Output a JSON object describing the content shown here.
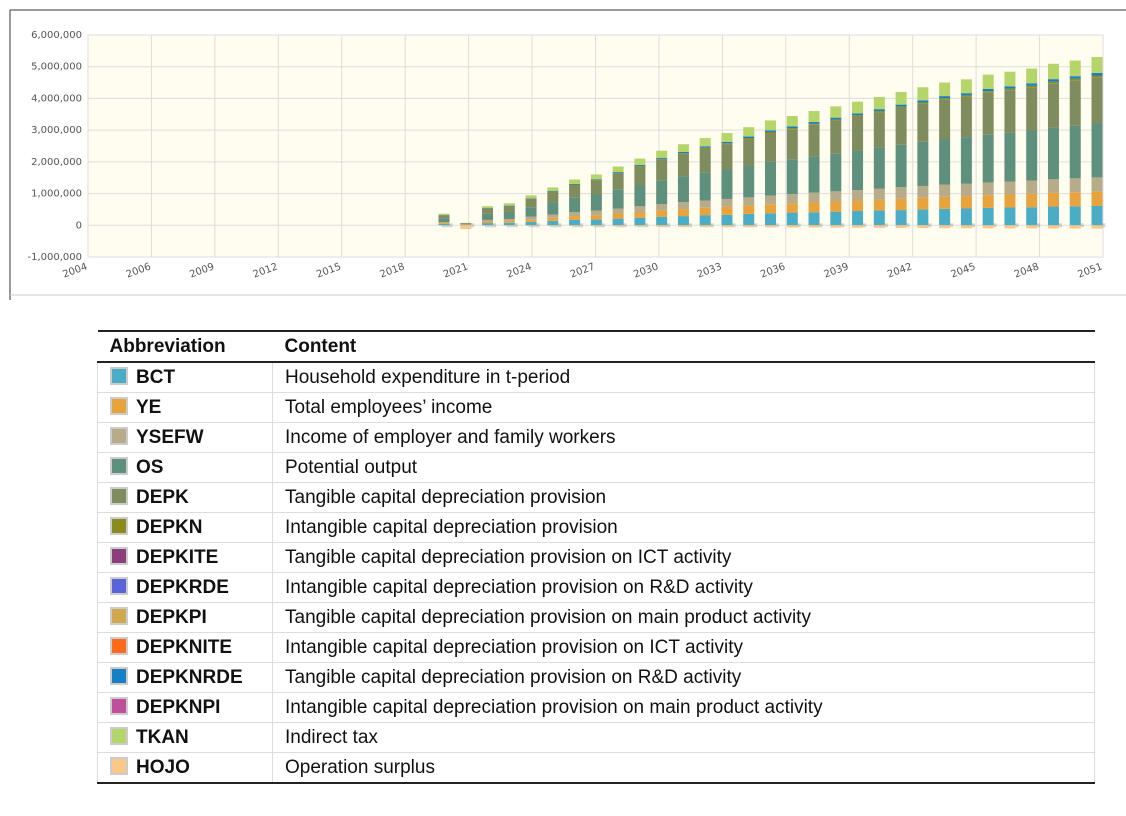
{
  "chart_data": {
    "type": "stacked_bar",
    "categories": [
      2020,
      2021,
      2022,
      2023,
      2024,
      2025,
      2026,
      2027,
      2028,
      2029,
      2030,
      2031,
      2032,
      2033,
      2034,
      2035,
      2036,
      2037,
      2038,
      2039,
      2040,
      2041,
      2042,
      2043,
      2044,
      2045,
      2046,
      2047,
      2048,
      2049,
      2050
    ],
    "xtick_labels": [
      "2004",
      "2006",
      "2009",
      "2012",
      "2015",
      "2018",
      "2021",
      "2024",
      "2027",
      "2030",
      "2033",
      "2036",
      "2039",
      "2042",
      "2045",
      "2048",
      "2051"
    ],
    "ylim": [
      -1000000,
      6000000
    ],
    "yticks": [
      {
        "value": -1000000,
        "label": "-1,000,000"
      },
      0,
      {
        "value": 1000000,
        "label": "1,000,000"
      },
      {
        "value": 2000000,
        "label": "2,000,000"
      },
      {
        "value": 3000000,
        "label": "3,000,000"
      },
      {
        "value": 4000000,
        "label": "4,000,000"
      },
      {
        "value": 5000000,
        "label": "5,000,000"
      },
      {
        "value": 6000000,
        "label": "6,000,000"
      }
    ],
    "grid": true,
    "series": [
      {
        "name": "BCT",
        "color": "#4bacc6",
        "values": [
          40000,
          10000,
          70000,
          80000,
          110000,
          140000,
          170000,
          180000,
          210000,
          240000,
          270000,
          290000,
          320000,
          330000,
          360000,
          380000,
          400000,
          410000,
          430000,
          450000,
          470000,
          480000,
          500000,
          520000,
          530000,
          550000,
          560000,
          570000,
          590000,
          600000,
          610000
        ]
      },
      {
        "name": "YE",
        "color": "#e8a33c",
        "values": [
          30000,
          10000,
          50000,
          60000,
          80000,
          100000,
          120000,
          140000,
          160000,
          180000,
          200000,
          220000,
          230000,
          250000,
          260000,
          280000,
          290000,
          310000,
          320000,
          330000,
          340000,
          360000,
          370000,
          380000,
          390000,
          400000,
          410000,
          420000,
          430000,
          440000,
          450000
        ]
      },
      {
        "name": "YSEFW",
        "color": "#b8ab8a",
        "values": [
          30000,
          10000,
          50000,
          60000,
          80000,
          100000,
          120000,
          140000,
          160000,
          180000,
          200000,
          220000,
          230000,
          250000,
          260000,
          280000,
          290000,
          310000,
          320000,
          330000,
          340000,
          360000,
          370000,
          380000,
          390000,
          400000,
          410000,
          420000,
          430000,
          440000,
          450000
        ]
      },
      {
        "name": "OS",
        "color": "#5f8f7d",
        "values": [
          120000,
          20000,
          190000,
          220000,
          300000,
          380000,
          460000,
          510000,
          590000,
          670000,
          750000,
          820000,
          880000,
          930000,
          990000,
          1060000,
          1100000,
          1150000,
          1200000,
          1250000,
          1300000,
          1340000,
          1390000,
          1440000,
          1470000,
          1520000,
          1550000,
          1580000,
          1630000,
          1660000,
          1700000
        ]
      },
      {
        "name": "DEPK",
        "color": "#7f8c5d",
        "values": [
          100000,
          20000,
          170000,
          190000,
          260000,
          330000,
          400000,
          440000,
          510000,
          580000,
          650000,
          700000,
          760000,
          800000,
          850000,
          910000,
          950000,
          990000,
          1030000,
          1070000,
          1110000,
          1160000,
          1200000,
          1240000,
          1270000,
          1310000,
          1330000,
          1360000,
          1400000,
          1430000,
          1460000
        ]
      },
      {
        "name": "DEPKN",
        "color": "#8b8b1e",
        "values": [
          4000,
          1000,
          6000,
          7000,
          10000,
          12000,
          15000,
          16000,
          19000,
          21000,
          24000,
          26000,
          28000,
          29000,
          31000,
          33000,
          35000,
          36000,
          38000,
          39000,
          41000,
          42000,
          44000,
          45000,
          46000,
          48000,
          49000,
          50000,
          51000,
          52000,
          53000
        ]
      },
      {
        "name": "DEPKITE",
        "color": "#8b3f7a",
        "values": [
          0,
          0,
          0,
          0,
          0,
          0,
          0,
          0,
          0,
          0,
          0,
          0,
          0,
          0,
          0,
          0,
          0,
          0,
          0,
          0,
          0,
          0,
          0,
          0,
          0,
          0,
          0,
          0,
          0,
          0,
          0
        ]
      },
      {
        "name": "DEPKRDE",
        "color": "#5a64d8",
        "values": [
          0,
          0,
          0,
          0,
          0,
          0,
          0,
          0,
          0,
          0,
          0,
          0,
          0,
          0,
          0,
          0,
          0,
          0,
          0,
          0,
          0,
          0,
          0,
          0,
          0,
          0,
          0,
          0,
          0,
          0,
          0
        ]
      },
      {
        "name": "DEPKPI",
        "color": "#cfa94f",
        "values": [
          0,
          0,
          0,
          0,
          0,
          0,
          0,
          0,
          0,
          0,
          0,
          0,
          0,
          0,
          0,
          0,
          0,
          0,
          0,
          0,
          0,
          0,
          0,
          0,
          0,
          0,
          0,
          0,
          0,
          0,
          0
        ]
      },
      {
        "name": "DEPKNITE",
        "color": "#ff6a1a",
        "values": [
          0,
          0,
          0,
          0,
          0,
          0,
          0,
          0,
          0,
          0,
          0,
          0,
          0,
          0,
          0,
          0,
          0,
          0,
          0,
          0,
          0,
          0,
          0,
          0,
          0,
          0,
          0,
          0,
          0,
          0,
          0
        ]
      },
      {
        "name": "DEPKNRDE",
        "color": "#1680c4",
        "values": [
          6000,
          1000,
          9000,
          11000,
          14000,
          18000,
          22000,
          24000,
          28000,
          32000,
          35000,
          38000,
          41000,
          44000,
          47000,
          50000,
          52000,
          54000,
          56000,
          59000,
          61000,
          63000,
          65000,
          68000,
          69000,
          71000,
          73000,
          74000,
          77000,
          78000,
          80000
        ]
      },
      {
        "name": "DEPKNPI",
        "color": "#c04f9b",
        "values": [
          0,
          0,
          0,
          0,
          0,
          0,
          0,
          0,
          0,
          0,
          0,
          0,
          0,
          0,
          0,
          0,
          0,
          0,
          0,
          0,
          0,
          0,
          0,
          0,
          0,
          0,
          0,
          0,
          0,
          0,
          0
        ]
      },
      {
        "name": "TKAN",
        "color": "#b5d56a",
        "values": [
          36000,
          6000,
          57000,
          67000,
          90000,
          114000,
          138000,
          152000,
          176000,
          200000,
          223000,
          242000,
          261000,
          276000,
          295000,
          314000,
          328000,
          342000,
          356000,
          371000,
          385000,
          399000,
          413000,
          428000,
          437000,
          451000,
          461000,
          470000,
          485000,
          494000,
          504000
        ]
      },
      {
        "name": "HOJO",
        "color": "#fcc88a",
        "values": [
          -8000,
          -120000,
          -12000,
          -14000,
          -19000,
          -24000,
          -29000,
          -32000,
          -37000,
          -42000,
          -47000,
          -51000,
          -55000,
          -58000,
          -62000,
          -66000,
          -69000,
          -72000,
          -75000,
          -78000,
          -81000,
          -84000,
          -87000,
          -90000,
          -92000,
          -95000,
          -97000,
          -99000,
          -102000,
          -104000,
          -106000
        ]
      }
    ]
  },
  "legend_table": {
    "header": [
      "Abbreviation",
      "Content"
    ],
    "contents": [
      "Household expenditure in t-period",
      "Total employees’ income",
      "Income of employer and family workers",
      "Potential output",
      "Tangible capital depreciation provision",
      "Intangible capital depreciation provision",
      "Tangible capital depreciation provision on ICT activity",
      "Intangible capital depreciation provision on R&D activity",
      "Tangible capital depreciation provision on main product activity",
      "Intangible capital depreciation provision on ICT activity",
      "Tangible capital depreciation provision on R&D activity",
      "Intangible capital depreciation provision on main product activity",
      "Indirect tax",
      "Operation surplus"
    ]
  }
}
